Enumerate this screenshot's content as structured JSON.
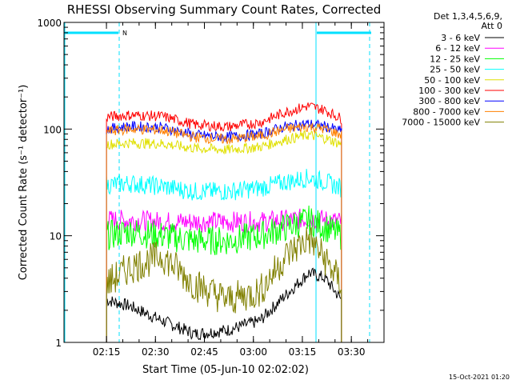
{
  "chart_data": {
    "type": "line",
    "title": "RHESSI Observing Summary Count Rates, Corrected",
    "xlabel": "Start Time (05-Jun-10 02:02:02)",
    "ylabel": "Corrected Count Rate (s⁻¹ detector⁻¹)",
    "y_scale": "log",
    "ylim": [
      1,
      1000
    ],
    "xlim": [
      "02:02:02",
      "03:40:00"
    ],
    "x_ticks": [
      "02:15",
      "02:30",
      "02:45",
      "03:00",
      "03:15",
      "03:30"
    ],
    "y_ticks": [
      "1",
      "10",
      "100",
      "1000"
    ],
    "legend_header": [
      "Det 1,3,4,5,6,9,",
      "Att 0"
    ],
    "legend_position": "right",
    "footer": "15-Oct-2021 01:20",
    "flag_label": "N",
    "x_minutes": [
      13,
      20,
      30,
      40,
      50,
      60,
      68,
      75,
      80,
      85
    ],
    "series": [
      {
        "name": "3 - 6 keV",
        "color": "#000000",
        "values": [
          2.5,
          2.2,
          1.6,
          1.2,
          1.3,
          1.6,
          2.8,
          4.5,
          4.0,
          2.5
        ]
      },
      {
        "name": "6 - 12 keV",
        "color": "#ff00ff",
        "values": [
          14,
          14,
          13.5,
          13.5,
          13.5,
          13.5,
          14,
          14.5,
          14,
          13.5
        ]
      },
      {
        "name": "12 - 25 keV",
        "color": "#00ff00",
        "values": [
          10,
          11,
          10,
          9,
          9,
          10,
          12,
          14,
          12,
          10
        ]
      },
      {
        "name": "25 - 50 keV",
        "color": "#00ffff",
        "values": [
          30,
          31,
          29,
          26,
          26,
          28,
          32,
          35,
          32,
          28
        ]
      },
      {
        "name": "50 - 100 keV",
        "color": "#e0e000",
        "values": [
          72,
          74,
          73,
          66,
          64,
          68,
          80,
          88,
          82,
          72
        ]
      },
      {
        "name": "100 - 300 keV",
        "color": "#ff0000",
        "values": [
          130,
          135,
          132,
          110,
          105,
          115,
          145,
          165,
          150,
          125
        ]
      },
      {
        "name": "300 - 800 keV",
        "color": "#0000ff",
        "values": [
          100,
          106,
          104,
          88,
          84,
          90,
          106,
          112,
          106,
          95
        ]
      },
      {
        "name": "800 - 7000 keV",
        "color": "#ff8000",
        "values": [
          95,
          100,
          98,
          84,
          80,
          86,
          100,
          106,
          100,
          88
        ]
      },
      {
        "name": "7000 - 15000 keV",
        "color": "#808000",
        "values": [
          3.5,
          5.0,
          6.5,
          3.5,
          2.5,
          3.0,
          6.5,
          9.5,
          6.0,
          3.5
        ]
      }
    ]
  }
}
